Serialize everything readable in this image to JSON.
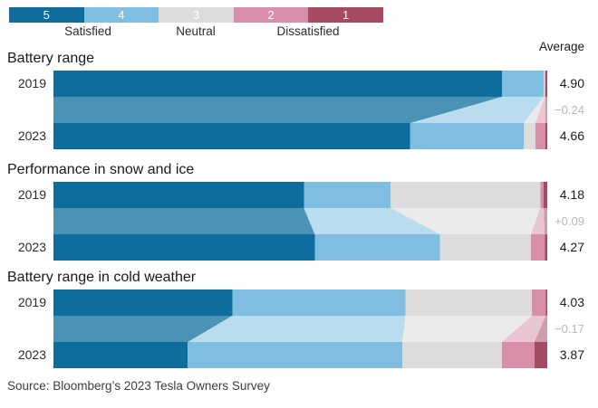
{
  "legend": {
    "scale_labels": [
      "5",
      "4",
      "3",
      "2",
      "1"
    ],
    "group_labels": [
      "Satisfied",
      "Neutral",
      "Dissatisfied"
    ]
  },
  "average_header": "Average",
  "source": "Source: Bloomberg’s 2023 Tesla Owners Survey",
  "chart_data": {
    "type": "bar",
    "subtype": "horizontal-stacked-percent-with-flow-connectors",
    "legend_position": "top",
    "scale": [
      "5",
      "4",
      "3",
      "2",
      "1"
    ],
    "scale_groups": [
      "Satisfied",
      "Neutral",
      "Dissatisfied"
    ],
    "average_label": "Average",
    "segment_colors": [
      "#0e6d9c",
      "#7fbee0",
      "#dcdcdc",
      "#d88da8",
      "#a54c62"
    ],
    "connector_colors": [
      "#4a93b4",
      "#b9dcee",
      "#ebebeb",
      "#eac5d2",
      "#cc9dab"
    ],
    "xlim_percent": [
      0,
      100
    ],
    "sections": [
      {
        "title": "Battery range",
        "change": "−0.24",
        "rows": [
          {
            "year": "2019",
            "segments": [
              90.8,
              8.5,
              0.2,
              0.1,
              0.4
            ],
            "average": "4.90"
          },
          {
            "year": "2023",
            "segments": [
              72.2,
              23.0,
              2.4,
              2.0,
              0.4
            ],
            "average": "4.66"
          }
        ]
      },
      {
        "title": "Performance in snow and ice",
        "change": "+0.09",
        "rows": [
          {
            "year": "2019",
            "segments": [
              50.7,
              17.6,
              30.3,
              0.7,
              0.7
            ],
            "average": "4.18"
          },
          {
            "year": "2023",
            "segments": [
              52.9,
              25.4,
              18.4,
              2.8,
              0.5
            ],
            "average": "4.27"
          }
        ]
      },
      {
        "title": "Battery range in cold weather",
        "change": "−0.17",
        "rows": [
          {
            "year": "2019",
            "segments": [
              36.2,
              35.1,
              25.6,
              2.8,
              0.3
            ],
            "average": "4.03"
          },
          {
            "year": "2023",
            "segments": [
              27.2,
              43.4,
              20.2,
              6.6,
              2.6
            ],
            "average": "3.87"
          }
        ]
      }
    ],
    "source": "Source: Bloomberg’s 2023 Tesla Owners Survey"
  }
}
